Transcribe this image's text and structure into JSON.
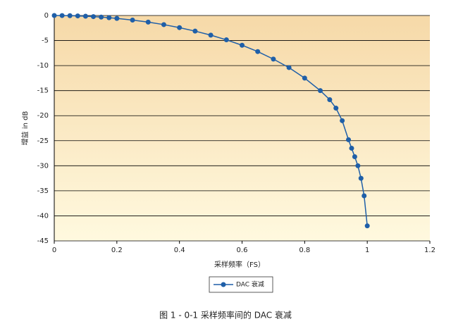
{
  "chart_data": {
    "type": "line",
    "caption": "图 1 - 0-1 采样频率间的 DAC 衰减",
    "x_label": "采样频率（FS）",
    "y_label": "增益 in dB",
    "x": [
      0,
      0.025,
      0.05,
      0.075,
      0.1,
      0.125,
      0.15,
      0.175,
      0.2,
      0.25,
      0.3,
      0.35,
      0.4,
      0.45,
      0.5,
      0.55,
      0.6,
      0.65,
      0.7,
      0.75,
      0.8,
      0.85,
      0.88,
      0.9,
      0.92,
      0.94,
      0.95,
      0.96,
      0.97,
      0.98,
      0.99,
      1.0
    ],
    "series": [
      {
        "name": "DAC 衰减",
        "color": "#1f5fa8",
        "values": [
          0,
          -0.01,
          -0.04,
          -0.08,
          -0.14,
          -0.22,
          -0.32,
          -0.44,
          -0.58,
          -0.91,
          -1.32,
          -1.82,
          -2.42,
          -3.12,
          -3.92,
          -4.86,
          -5.94,
          -7.2,
          -8.7,
          -10.4,
          -12.5,
          -15.0,
          -16.8,
          -18.5,
          -21,
          -24.8,
          -26.5,
          -28.2,
          -30,
          -32.5,
          -36,
          -42
        ]
      }
    ],
    "xlim": [
      0,
      1.2
    ],
    "xticks": [
      0,
      0.2,
      0.4,
      0.6,
      0.8,
      1,
      1.2
    ],
    "ylim": [
      -45,
      0
    ],
    "yticks": [
      0,
      -5,
      -10,
      -15,
      -20,
      -25,
      -30,
      -35,
      -40,
      -45
    ],
    "grid": true,
    "legend": "bottom"
  }
}
